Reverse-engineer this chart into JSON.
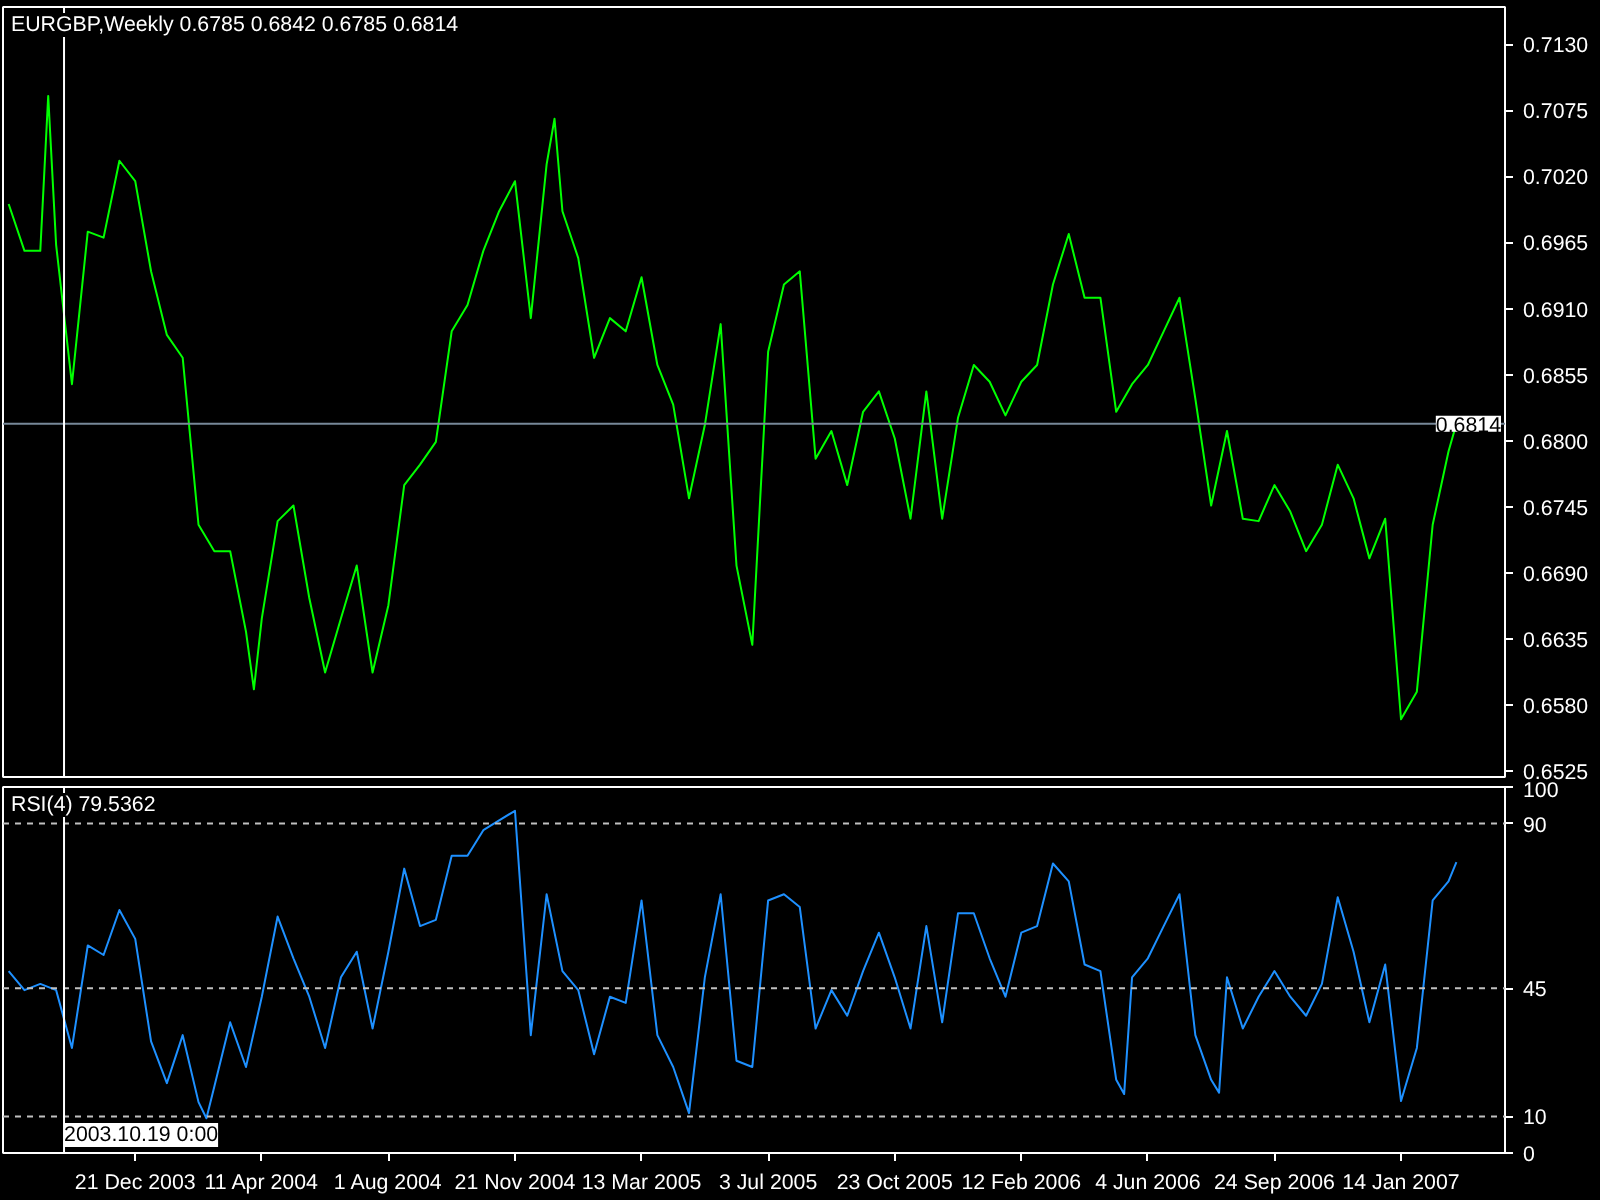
{
  "chart_data": [
    {
      "type": "line",
      "title": "EURGBP,Weekly  0.6785 0.6842 0.6785 0.6814",
      "xlim": [
        "2003-08-26",
        "2007-04-16"
      ],
      "ylim": [
        0.652,
        0.7161
      ],
      "yticks": [
        0.6525,
        {
          "value": 0.658,
          "label": "0.6580"
        },
        0.6635,
        {
          "value": 0.669,
          "label": "0.6690"
        },
        0.6745,
        {
          "value": 0.68,
          "label": "0.6800"
        },
        0.6855,
        {
          "value": 0.691,
          "label": "0.6910"
        },
        0.6965,
        {
          "value": 0.702,
          "label": "0.7020"
        },
        0.7075,
        {
          "value": 0.713,
          "label": "0.7130"
        }
      ],
      "tick_labels": "y",
      "series": [
        {
          "color": "#00ff00",
          "x": [
            "2003-08-31",
            "2003-09-14",
            "2003-09-28",
            "2003-10-05",
            "2003-10-12",
            "2003-10-26",
            "2003-11-09",
            "2003-11-23",
            "2003-12-07",
            "2003-12-21",
            "2004-01-04",
            "2004-01-18",
            "2004-02-01",
            "2004-02-15",
            "2004-02-29",
            "2004-03-14",
            "2004-03-28",
            "2004-04-04",
            "2004-04-11",
            "2004-04-25",
            "2004-05-09",
            "2004-05-23",
            "2004-06-06",
            "2004-06-20",
            "2004-07-04",
            "2004-07-18",
            "2004-08-01",
            "2004-08-15",
            "2004-08-29",
            "2004-09-12",
            "2004-09-26",
            "2004-10-10",
            "2004-10-24",
            "2004-11-07",
            "2004-11-21",
            "2004-12-05",
            "2004-12-19",
            "2004-12-26",
            "2005-01-02",
            "2005-01-16",
            "2005-01-30",
            "2005-02-13",
            "2005-02-27",
            "2005-03-13",
            "2005-03-27",
            "2005-04-10",
            "2005-04-24",
            "2005-05-08",
            "2005-05-22",
            "2005-06-05",
            "2005-06-19",
            "2005-07-03",
            "2005-07-17",
            "2005-07-31",
            "2005-08-14",
            "2005-08-28",
            "2005-09-11",
            "2005-09-25",
            "2005-10-09",
            "2005-10-23",
            "2005-11-06",
            "2005-11-20",
            "2005-12-04",
            "2005-12-18",
            "2006-01-01",
            "2006-01-15",
            "2006-01-29",
            "2006-02-12",
            "2006-02-26",
            "2006-03-12",
            "2006-03-26",
            "2006-04-09",
            "2006-04-23",
            "2006-05-07",
            "2006-05-21",
            "2006-06-04",
            "2006-06-18",
            "2006-07-02",
            "2006-07-16",
            "2006-07-30",
            "2006-08-13",
            "2006-08-27",
            "2006-09-10",
            "2006-09-24",
            "2006-10-08",
            "2006-10-22",
            "2006-11-05",
            "2006-11-19",
            "2006-12-03",
            "2006-12-17",
            "2006-12-31",
            "2007-01-14",
            "2007-01-28",
            "2007-02-11",
            "2007-02-25",
            "2007-03-04"
          ],
          "values": [
            0.6997,
            0.6958,
            0.6958,
            0.7087,
            0.6963,
            0.6847,
            0.6974,
            0.6969,
            0.7033,
            0.7016,
            0.6941,
            0.6888,
            0.6869,
            0.673,
            0.6708,
            0.6708,
            0.6641,
            0.6593,
            0.6652,
            0.6733,
            0.6746,
            0.6669,
            0.6607,
            0.6652,
            0.6696,
            0.6607,
            0.6663,
            0.6763,
            0.678,
            0.6799,
            0.6891,
            0.6913,
            0.6958,
            0.6991,
            0.7016,
            0.6902,
            0.703,
            0.7068,
            0.6991,
            0.6952,
            0.6869,
            0.6902,
            0.6891,
            0.6936,
            0.6863,
            0.683,
            0.6752,
            0.6813,
            0.6897,
            0.6696,
            0.663,
            0.6874,
            0.693,
            0.6941,
            0.6785,
            0.6808,
            0.6763,
            0.6824,
            0.6841,
            0.6802,
            0.6735,
            0.6841,
            0.6735,
            0.6819,
            0.6863,
            0.6849,
            0.6821,
            0.6849,
            0.6863,
            0.693,
            0.6972,
            0.6919,
            0.6919,
            0.6824,
            0.6847,
            0.6863,
            0.6891,
            0.6919,
            0.6835,
            0.6746,
            0.6808,
            0.6735,
            0.6733,
            0.6763,
            0.6741,
            0.6708,
            0.673,
            0.678,
            0.6752,
            0.6702,
            0.6735,
            0.6568,
            0.6591,
            0.673,
            0.6791,
            0.6814
          ]
        }
      ],
      "ref_lines": [
        {
          "axis": "y",
          "value": 0.6814,
          "label": "0.6814",
          "color": "#778899"
        },
        {
          "axis": "x",
          "value": "2003-10-19",
          "color": "#ffffff"
        }
      ]
    },
    {
      "type": "line",
      "title": "RSI(4) 79.5362",
      "xlim": [
        "2003-08-26",
        "2007-04-16"
      ],
      "ylim": [
        0,
        100
      ],
      "xticks": [
        {
          "value": "2003-12-21",
          "label": "21 Dec 2003"
        },
        {
          "value": "2004-04-11",
          "label": "11 Apr 2004"
        },
        {
          "value": "2004-08-01",
          "label": "1 Aug 2004"
        },
        {
          "value": "2004-11-21",
          "label": "21 Nov 2004"
        },
        {
          "value": "2005-03-13",
          "label": "13 Mar 2005"
        },
        {
          "value": "2005-07-03",
          "label": "3 Jul 2005"
        },
        {
          "value": "2005-10-23",
          "label": "23 Oct 2005"
        },
        {
          "value": "2006-02-12",
          "label": "12 Feb 2006"
        },
        {
          "value": "2006-06-04",
          "label": "4 Jun 2006"
        },
        {
          "value": "2006-09-24",
          "label": "24 Sep 2006"
        },
        {
          "value": "2007-01-14",
          "label": "14 Jan 2007"
        }
      ],
      "yticks": [
        0,
        10,
        45,
        90,
        100
      ],
      "series": [
        {
          "color": "#1e90ff",
          "x": [
            "2003-08-31",
            "2003-09-14",
            "2003-09-28",
            "2003-10-12",
            "2003-10-26",
            "2003-11-09",
            "2003-11-23",
            "2003-12-07",
            "2003-12-21",
            "2004-01-04",
            "2004-01-18",
            "2004-02-01",
            "2004-02-15",
            "2004-02-22",
            "2004-02-29",
            "2004-03-14",
            "2004-03-28",
            "2004-04-11",
            "2004-04-25",
            "2004-05-09",
            "2004-05-23",
            "2004-06-06",
            "2004-06-20",
            "2004-07-04",
            "2004-07-18",
            "2004-08-01",
            "2004-08-15",
            "2004-08-29",
            "2004-09-12",
            "2004-09-26",
            "2004-10-10",
            "2004-10-24",
            "2004-11-07",
            "2004-11-21",
            "2004-12-05",
            "2004-12-19",
            "2005-01-02",
            "2005-01-16",
            "2005-01-30",
            "2005-02-13",
            "2005-02-27",
            "2005-03-13",
            "2005-03-27",
            "2005-04-10",
            "2005-04-24",
            "2005-05-08",
            "2005-05-22",
            "2005-06-05",
            "2005-06-19",
            "2005-07-03",
            "2005-07-17",
            "2005-07-31",
            "2005-08-14",
            "2005-08-28",
            "2005-09-11",
            "2005-09-25",
            "2005-10-09",
            "2005-10-23",
            "2005-11-06",
            "2005-11-20",
            "2005-12-04",
            "2005-12-18",
            "2006-01-01",
            "2006-01-15",
            "2006-01-29",
            "2006-02-12",
            "2006-02-26",
            "2006-03-12",
            "2006-03-26",
            "2006-04-09",
            "2006-04-23",
            "2006-05-07",
            "2006-05-14",
            "2006-05-21",
            "2006-06-04",
            "2006-06-18",
            "2006-07-02",
            "2006-07-16",
            "2006-07-30",
            "2006-08-06",
            "2006-08-13",
            "2006-08-27",
            "2006-09-10",
            "2006-09-24",
            "2006-10-08",
            "2006-10-22",
            "2006-11-05",
            "2006-11-19",
            "2006-12-03",
            "2006-12-17",
            "2006-12-31",
            "2007-01-14",
            "2007-01-28",
            "2007-02-11",
            "2007-02-25",
            "2007-03-04"
          ],
          "values": [
            49.7,
            44.5,
            46.2,
            44.5,
            28.7,
            56.7,
            54.1,
            66.4,
            58.5,
            30.5,
            19.1,
            32.2,
            13.9,
            9.5,
            18.2,
            35.7,
            23.5,
            42.7,
            64.6,
            53.2,
            42.7,
            28.7,
            48.0,
            55.0,
            34.0,
            55.0,
            77.7,
            62.0,
            63.7,
            81.2,
            81.2,
            88.2,
            90.9,
            93.5,
            32.2,
            70.7,
            49.7,
            44.5,
            27.0,
            42.7,
            41.0,
            69.0,
            32.2,
            23.5,
            10.9,
            48.0,
            70.7,
            25.2,
            23.5,
            69.0,
            70.7,
            67.2,
            34.0,
            44.5,
            37.5,
            49.7,
            60.2,
            48.0,
            34.0,
            62.0,
            35.7,
            65.5,
            65.5,
            53.2,
            42.7,
            60.2,
            62.0,
            79.1,
            74.2,
            51.5,
            49.7,
            20.0,
            16.1,
            48.0,
            53.2,
            62.0,
            70.7,
            32.2,
            20.0,
            16.5,
            48.0,
            34.0,
            42.7,
            49.7,
            42.7,
            37.5,
            46.2,
            69.9,
            55.0,
            35.7,
            51.5,
            14.2,
            28.7,
            69.0,
            74.2,
            79.5
          ]
        }
      ],
      "ref_lines": [
        {
          "axis": "y",
          "value": 90,
          "color": "#c0c0c0",
          "line_style": "dashed"
        },
        {
          "axis": "y",
          "value": 45,
          "color": "#c0c0c0",
          "line_style": "dashed"
        },
        {
          "axis": "y",
          "value": 10,
          "color": "#c0c0c0",
          "line_style": "dashed"
        },
        {
          "axis": "x",
          "value": "2003-10-19",
          "label": "2003.10.19 0:00",
          "color": "#ffffff"
        }
      ]
    }
  ]
}
